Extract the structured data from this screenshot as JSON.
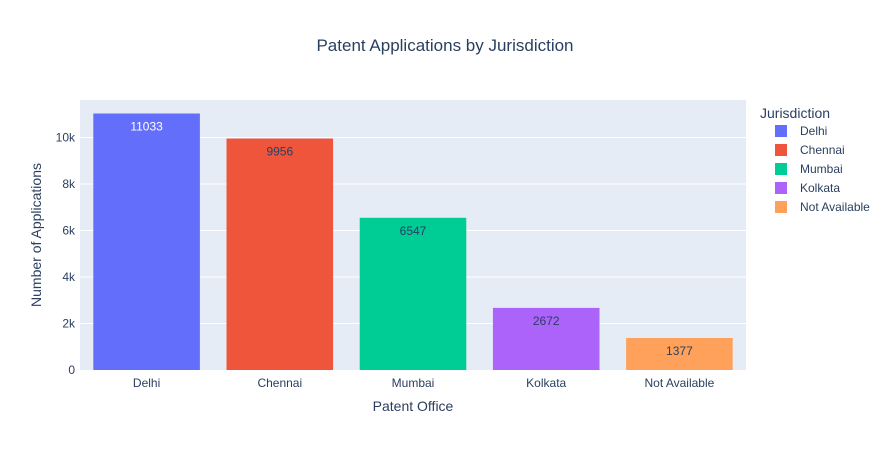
{
  "chart_data": {
    "type": "bar",
    "title": "Patent Applications by Jurisdiction",
    "xlabel": "Patent Office",
    "ylabel": "Number of Applications",
    "categories": [
      "Delhi",
      "Chennai",
      "Mumbai",
      "Kolkata",
      "Not Available"
    ],
    "values": [
      11033,
      9956,
      6547,
      2672,
      1377
    ],
    "colors": [
      "#636efa",
      "#EF553B",
      "#00cc96",
      "#ab63fa",
      "#FFA15A"
    ],
    "ylim": [
      0,
      11614
    ],
    "yticks": [
      0,
      2000,
      4000,
      6000,
      8000,
      10000
    ],
    "ytick_labels": [
      "0",
      "2k",
      "4k",
      "6k",
      "8k",
      "10k"
    ],
    "grid": true,
    "legend": {
      "title": "Jurisdiction",
      "placement": "right",
      "entries": [
        "Delhi",
        "Chennai",
        "Mumbai",
        "Kolkata",
        "Not Available"
      ]
    },
    "background_color": "#E5ECF6"
  }
}
